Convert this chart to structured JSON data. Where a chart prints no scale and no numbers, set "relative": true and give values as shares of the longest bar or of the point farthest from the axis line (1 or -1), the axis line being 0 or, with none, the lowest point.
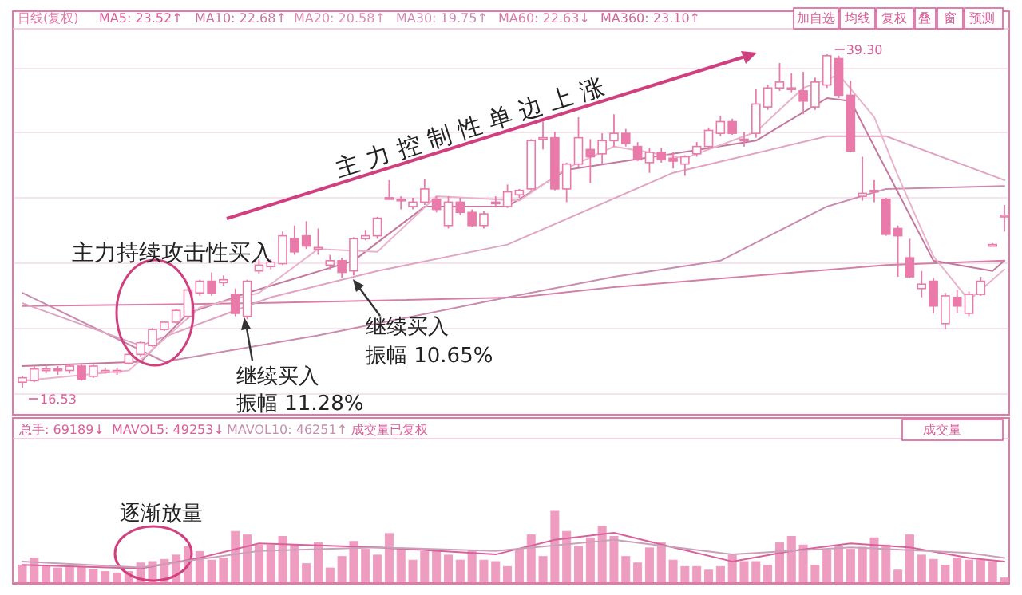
{
  "chart_data": [
    {
      "type": "candlestick",
      "color": "#e97aa9",
      "grid": true,
      "categories": [
        null,
        null,
        null,
        null,
        null,
        null,
        null,
        null,
        null,
        null,
        null,
        null,
        null,
        null,
        null,
        null,
        null,
        null,
        null,
        null,
        null,
        null,
        null,
        null,
        null,
        null,
        null,
        null,
        null,
        null,
        null,
        null,
        null,
        null,
        null,
        null,
        null,
        null,
        null,
        null,
        null,
        null,
        null,
        null,
        null,
        null,
        null,
        null,
        null,
        null,
        null,
        null,
        null,
        null,
        null,
        null,
        null,
        null,
        null,
        null,
        null,
        null,
        null,
        null,
        null,
        null,
        null,
        null,
        null,
        null,
        null,
        null,
        null,
        null,
        null,
        null,
        null,
        null,
        null,
        null,
        null,
        null,
        null,
        null
      ],
      "ohlc": [
        [
          16.9,
          17.3,
          16.53,
          17.2
        ],
        [
          17.0,
          18.0,
          16.9,
          17.8
        ],
        [
          17.8,
          18.1,
          17.5,
          17.8
        ],
        [
          17.8,
          18.0,
          17.4,
          17.7
        ],
        [
          17.7,
          18.1,
          17.5,
          18.0
        ],
        [
          18.0,
          18.1,
          17.0,
          17.1
        ],
        [
          17.3,
          18.1,
          17.2,
          18.0
        ],
        [
          17.7,
          17.9,
          17.5,
          17.7
        ],
        [
          17.6,
          17.9,
          17.4,
          17.7
        ],
        [
          18.2,
          19.0,
          18.1,
          18.8
        ],
        [
          18.8,
          19.7,
          18.6,
          19.6
        ],
        [
          19.4,
          20.6,
          19.3,
          20.5
        ],
        [
          20.5,
          21.1,
          20.4,
          21.0
        ],
        [
          21.0,
          21.9,
          20.9,
          21.8
        ],
        [
          21.4,
          23.4,
          21.2,
          23.2
        ],
        [
          23.0,
          23.9,
          22.8,
          23.8
        ],
        [
          23.8,
          24.4,
          22.8,
          23.0
        ],
        [
          23.7,
          24.2,
          23.5,
          23.9
        ],
        [
          22.9,
          23.3,
          21.4,
          21.6
        ],
        [
          21.4,
          23.9,
          21.2,
          23.8
        ],
        [
          24.5,
          25.3,
          24.3,
          24.9
        ],
        [
          24.8,
          25.3,
          24.6,
          25.1
        ],
        [
          25.0,
          27.2,
          24.9,
          26.9
        ],
        [
          26.7,
          27.6,
          25.6,
          25.8
        ],
        [
          26.9,
          27.9,
          26.0,
          26.2
        ],
        [
          26.0,
          27.4,
          25.6,
          26.1
        ],
        [
          24.9,
          25.6,
          24.6,
          25.2
        ],
        [
          25.2,
          25.4,
          24.0,
          24.4
        ],
        [
          24.5,
          26.8,
          24.2,
          26.7
        ],
        [
          26.7,
          27.3,
          26.6,
          26.9
        ],
        [
          26.9,
          28.2,
          26.7,
          28.1
        ],
        [
          29.5,
          30.7,
          29.4,
          29.4
        ],
        [
          29.4,
          29.6,
          28.7,
          29.3
        ],
        [
          28.9,
          29.5,
          28.7,
          29.2
        ],
        [
          29.2,
          30.8,
          29.0,
          30.1
        ],
        [
          29.4,
          29.6,
          28.5,
          28.7
        ],
        [
          27.6,
          29.6,
          27.4,
          29.2
        ],
        [
          29.2,
          29.5,
          28.3,
          28.5
        ],
        [
          28.5,
          28.7,
          27.5,
          27.6
        ],
        [
          27.6,
          28.6,
          27.4,
          28.4
        ],
        [
          29.1,
          29.6,
          28.9,
          29.2
        ],
        [
          28.9,
          30.4,
          28.8,
          29.9
        ],
        [
          29.7,
          30.1,
          29.5,
          30.0
        ],
        [
          30.1,
          33.5,
          30.0,
          33.4
        ],
        [
          33.5,
          34.7,
          32.8,
          33.6
        ],
        [
          33.6,
          34.0,
          30.0,
          30.1
        ],
        [
          30.1,
          31.9,
          29.2,
          31.8
        ],
        [
          31.8,
          35.0,
          31.6,
          33.6
        ],
        [
          32.8,
          33.5,
          30.5,
          32.3
        ],
        [
          32.5,
          33.9,
          31.8,
          33.4
        ],
        [
          33.4,
          35.2,
          33.0,
          33.9
        ],
        [
          33.9,
          34.2,
          33.0,
          33.2
        ],
        [
          33.0,
          33.3,
          32.0,
          32.1
        ],
        [
          31.9,
          32.9,
          31.2,
          32.6
        ],
        [
          32.6,
          32.9,
          31.9,
          32.1
        ],
        [
          32.2,
          32.6,
          31.5,
          32.0
        ],
        [
          31.8,
          32.4,
          31.0,
          32.3
        ],
        [
          32.5,
          33.3,
          32.3,
          33.0
        ],
        [
          33.0,
          34.3,
          32.8,
          34.1
        ],
        [
          33.9,
          35.1,
          33.7,
          34.7
        ],
        [
          34.7,
          34.9,
          33.8,
          33.9
        ],
        [
          33.5,
          34.0,
          33.0,
          33.5
        ],
        [
          33.9,
          36.9,
          33.6,
          35.9
        ],
        [
          35.7,
          37.2,
          35.5,
          37.0
        ],
        [
          37.0,
          38.7,
          36.8,
          37.4
        ],
        [
          37.0,
          38.0,
          36.7,
          37.0
        ],
        [
          36.8,
          38.1,
          35.2,
          36.1
        ],
        [
          35.7,
          37.7,
          35.5,
          37.4
        ],
        [
          37.2,
          39.3,
          37.0,
          39.2
        ],
        [
          39.0,
          39.2,
          36.3,
          36.5
        ],
        [
          36.5,
          37.5,
          32.6,
          32.7
        ],
        [
          29.6,
          32.3,
          29.3,
          29.8
        ],
        [
          30.0,
          30.7,
          29.2,
          30.0
        ],
        [
          29.4,
          29.5,
          26.9,
          27.0
        ],
        [
          27.4,
          27.6,
          24.1,
          26.9
        ],
        [
          25.4,
          26.7,
          24.0,
          24.1
        ],
        [
          23.3,
          24.5,
          22.7,
          23.6
        ],
        [
          23.8,
          24.0,
          21.6,
          22.1
        ],
        [
          20.9,
          23.0,
          20.5,
          22.8
        ],
        [
          22.7,
          23.2,
          21.6,
          22.1
        ],
        [
          21.6,
          23.1,
          21.4,
          22.9
        ],
        [
          22.9,
          24.1,
          22.8,
          23.8
        ],
        [
          26.3,
          26.4,
          26.2,
          26.3
        ],
        [
          28.3,
          29.0,
          27.2,
          28.3
        ]
      ],
      "series": [
        {
          "type": "line",
          "color": "#d47fa8",
          "values": [
            22.1,
            null,
            null,
            null,
            null,
            null,
            null,
            null,
            null,
            null,
            null,
            null,
            null,
            null,
            null,
            null,
            null,
            null,
            null,
            null,
            22.3,
            null,
            null,
            null,
            null,
            null,
            null,
            null,
            null,
            null,
            null,
            null,
            null,
            null,
            null,
            null,
            null,
            null,
            null,
            null,
            null,
            null,
            22.7,
            null,
            null,
            null,
            null,
            null,
            null,
            null,
            23.4,
            null,
            null,
            null,
            null,
            null,
            null,
            null,
            null,
            null,
            null,
            null,
            null,
            null,
            null,
            null,
            null,
            null,
            null,
            null,
            null,
            null,
            null,
            24.9,
            null,
            null,
            null,
            null,
            null,
            null,
            null,
            null,
            null,
            25.2
          ]
        },
        {
          "type": "line",
          "color": "#c98bb0",
          "values": [
            23.0,
            null,
            null,
            null,
            null,
            null,
            null,
            null,
            null,
            null,
            null,
            null,
            18.3,
            null,
            null,
            null,
            null,
            null,
            null,
            null,
            null,
            null,
            null,
            null,
            null,
            20.1,
            null,
            null,
            null,
            null,
            null,
            null,
            null,
            null,
            null,
            null,
            null,
            null,
            null,
            null,
            null,
            22.7,
            null,
            null,
            null,
            null,
            null,
            null,
            null,
            null,
            24.1,
            null,
            null,
            null,
            null,
            null,
            null,
            null,
            null,
            25.2,
            null,
            null,
            null,
            null,
            null,
            null,
            null,
            null,
            28.9,
            null,
            null,
            null,
            null,
            30.1,
            null,
            null,
            null,
            null,
            null,
            null,
            null,
            null,
            null,
            30.3
          ]
        },
        {
          "type": "line",
          "color": "#e0a3c2",
          "values": [
            22.3,
            null,
            null,
            null,
            null,
            null,
            null,
            null,
            null,
            null,
            19.4,
            null,
            null,
            null,
            null,
            null,
            null,
            null,
            null,
            null,
            null,
            22.7,
            null,
            null,
            null,
            null,
            null,
            null,
            null,
            null,
            24.5,
            null,
            null,
            null,
            null,
            null,
            null,
            null,
            null,
            null,
            null,
            26.3,
            null,
            null,
            null,
            null,
            null,
            null,
            null,
            null,
            null,
            null,
            null,
            null,
            null,
            31.2,
            null,
            null,
            null,
            null,
            null,
            null,
            null,
            null,
            null,
            null,
            null,
            null,
            33.7,
            null,
            null,
            null,
            null,
            33.7,
            null,
            null,
            null,
            null,
            null,
            null,
            null,
            null,
            null,
            30.7
          ]
        },
        {
          "type": "line",
          "color": "#c4789f",
          "values": [
            18.0,
            null,
            null,
            null,
            null,
            null,
            null,
            null,
            null,
            null,
            18.3,
            null,
            null,
            null,
            21.6,
            null,
            null,
            null,
            null,
            23.0,
            null,
            null,
            null,
            null,
            null,
            null,
            null,
            null,
            25.2,
            null,
            null,
            null,
            null,
            null,
            28.9,
            null,
            null,
            null,
            null,
            null,
            null,
            28.9,
            null,
            null,
            null,
            null,
            31.4,
            null,
            null,
            null,
            null,
            null,
            null,
            null,
            null,
            32.5,
            null,
            null,
            null,
            null,
            null,
            null,
            33.4,
            null,
            null,
            null,
            null,
            null,
            36.3,
            null,
            36.1,
            null,
            null,
            null,
            null,
            null,
            null,
            25.2,
            null,
            null,
            null,
            null,
            24.5,
            25.2
          ]
        },
        {
          "type": "line",
          "color": "#e9b3cc",
          "values": [
            17.0,
            null,
            null,
            null,
            null,
            null,
            null,
            null,
            null,
            17.7,
            null,
            null,
            null,
            null,
            null,
            22.0,
            null,
            null,
            null,
            null,
            23.0,
            null,
            null,
            null,
            null,
            26.0,
            null,
            null,
            null,
            null,
            25.8,
            null,
            null,
            null,
            null,
            29.6,
            null,
            null,
            null,
            null,
            null,
            null,
            29.3,
            null,
            null,
            null,
            31.5,
            null,
            null,
            null,
            33.0,
            null,
            null,
            null,
            null,
            null,
            32.2,
            null,
            null,
            null,
            null,
            null,
            34.0,
            null,
            null,
            null,
            37.0,
            null,
            null,
            37.9,
            null,
            null,
            35.0,
            null,
            31.0,
            null,
            null,
            25.5,
            null,
            null,
            22.5,
            null,
            null,
            24.6
          ]
        }
      ],
      "annotations": [
        "日线(复权)",
        "MA5: 23.52↑",
        "MA10: 22.68↑",
        "MA20: 20.58↑",
        "MA30: 19.75↑",
        "MA60: 22.63↓",
        "MA360: 23.10↑",
        "加自选",
        "均线",
        "复权",
        "叠",
        "窗",
        "预测",
        "主力控制性单边上涨",
        "主力持续攻击性买入",
        "继续买入",
        "振幅 11.28%",
        "继续买入",
        "振幅 10.65%",
        "39.30",
        "16.53"
      ]
    },
    {
      "type": "bar",
      "relative": true,
      "categories": [
        null,
        null,
        null,
        null,
        null,
        null,
        null,
        null,
        null,
        null,
        null,
        null,
        null,
        null,
        null,
        null,
        null,
        null,
        null,
        null,
        null,
        null,
        null,
        null,
        null,
        null,
        null,
        null,
        null,
        null,
        null,
        null,
        null,
        null,
        null,
        null,
        null,
        null,
        null,
        null,
        null,
        null,
        null,
        null,
        null,
        null,
        null,
        null,
        null,
        null,
        null,
        null,
        null,
        null,
        null,
        null,
        null,
        null,
        null,
        null,
        null,
        null,
        null,
        null,
        null,
        null,
        null,
        null,
        null,
        null,
        null,
        null,
        null,
        null,
        null,
        null,
        null,
        null,
        null,
        null,
        null,
        null,
        null,
        null
      ],
      "color": "#ef9cc1",
      "values": [
        0.25,
        0.35,
        0.23,
        0.21,
        0.22,
        0.23,
        0.19,
        0.16,
        0.14,
        0.16,
        0.28,
        0.3,
        0.33,
        0.39,
        0.51,
        0.44,
        0.32,
        0.35,
        0.72,
        0.67,
        0.53,
        0.53,
        0.65,
        0.53,
        0.27,
        0.56,
        0.21,
        0.37,
        0.58,
        0.47,
        0.39,
        0.69,
        0.49,
        0.32,
        0.44,
        0.44,
        0.39,
        0.32,
        0.46,
        0.32,
        0.3,
        0.23,
        0.47,
        0.67,
        0.37,
        1,
        0.72,
        0.51,
        0.63,
        0.79,
        0.65,
        0.37,
        0.28,
        0.49,
        0.56,
        0.32,
        0.23,
        0.23,
        0.18,
        0.23,
        0.39,
        0.3,
        0.3,
        0.25,
        0.56,
        0.65,
        0.53,
        0.25,
        0.46,
        0.51,
        0.47,
        0.5,
        0.63,
        0.53,
        0.18,
        0.67,
        0.39,
        0.33,
        0.25,
        0.35,
        0.32,
        0.32,
        0.3,
        0.07
      ],
      "annotations": [
        "总手: 69189↓",
        "MAVOL5: 49253↓",
        "MAVOL10: 46251↑",
        "成交量已复权",
        "成交量",
        "逐渐放量"
      ]
    },
    {
      "type": "line",
      "relative": true,
      "categories": [
        null,
        null,
        null,
        null,
        null,
        null,
        null,
        null,
        null,
        null,
        null,
        null,
        null,
        null,
        null,
        null,
        null,
        null,
        null,
        null,
        null,
        null,
        null,
        null,
        null,
        null,
        null,
        null,
        null,
        null,
        null,
        null,
        null,
        null,
        null,
        null,
        null,
        null,
        null,
        null,
        null,
        null,
        null,
        null,
        null,
        null,
        null,
        null,
        null,
        null,
        null,
        null,
        null,
        null,
        null,
        null,
        null,
        null,
        null,
        null,
        null,
        null,
        null,
        null,
        null,
        null,
        null,
        null,
        null,
        null,
        null,
        null,
        null,
        null,
        null,
        null,
        null,
        null,
        null,
        null,
        null,
        null,
        null,
        null
      ],
      "series": [
        {
          "color": "#d9609a",
          "values": [
            0.36,
            null,
            null,
            null,
            null,
            null,
            null,
            null,
            null,
            null,
            0.29,
            null,
            null,
            null,
            null,
            0.5,
            null,
            null,
            null,
            null,
            0.79,
            null,
            null,
            null,
            null,
            null,
            null,
            null,
            null,
            null,
            0.71,
            null,
            null,
            null,
            null,
            null,
            null,
            null,
            null,
            null,
            0.57,
            null,
            null,
            null,
            null,
            0.86,
            null,
            null,
            null,
            null,
            1,
            null,
            null,
            null,
            null,
            0.71,
            null,
            null,
            null,
            null,
            0.43,
            null,
            null,
            null,
            null,
            0.64,
            null,
            null,
            null,
            null,
            0.79,
            null,
            null,
            null,
            null,
            0.71,
            null,
            null,
            null,
            null,
            0.5,
            null,
            null,
            0.43
          ]
        },
        {
          "color": "#c9a0b8",
          "values": [
            0.43,
            null,
            null,
            null,
            null,
            null,
            null,
            null,
            null,
            null,
            0.31,
            null,
            null,
            null,
            null,
            null,
            null,
            null,
            null,
            null,
            0.64,
            null,
            null,
            null,
            null,
            null,
            null,
            null,
            null,
            null,
            0.71,
            null,
            null,
            null,
            null,
            null,
            null,
            null,
            null,
            null,
            0.64,
            null,
            null,
            null,
            null,
            null,
            null,
            null,
            null,
            null,
            0.86,
            null,
            null,
            null,
            null,
            null,
            null,
            null,
            null,
            null,
            0.57,
            null,
            null,
            null,
            null,
            null,
            null,
            null,
            null,
            null,
            0.71,
            null,
            null,
            null,
            null,
            null,
            null,
            null,
            null,
            null,
            0.6,
            null,
            null,
            0.5
          ]
        }
      ]
    }
  ]
}
